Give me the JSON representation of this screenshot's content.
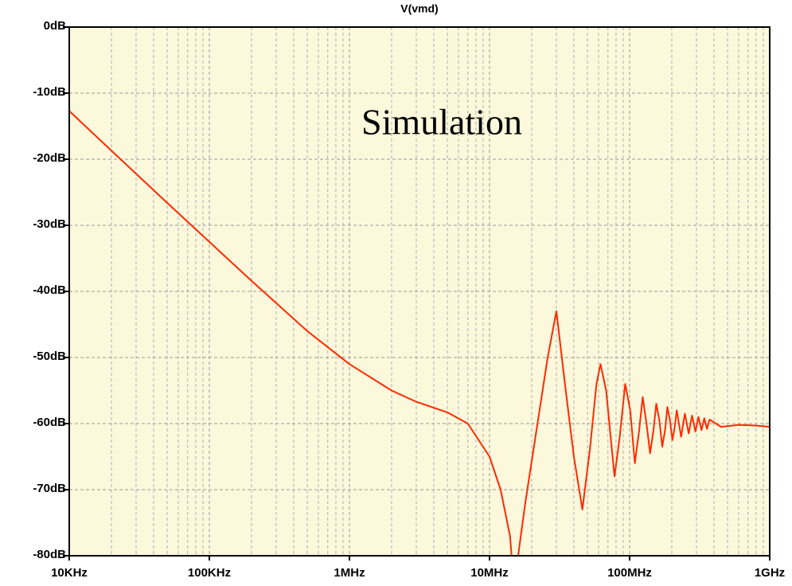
{
  "chart_data": {
    "type": "line",
    "series": [
      {
        "name": "V(vmd)",
        "color": "#ff2a00",
        "values": [
          -12.7,
          -18.7,
          -26.6,
          -32.5,
          -38.4,
          -46,
          -51,
          -55,
          -56.7,
          -58.3,
          -60,
          -65,
          -70,
          -77,
          -85,
          -80,
          -72,
          -60,
          -50,
          -43,
          -55,
          -65,
          -73,
          -64,
          -54,
          -51,
          -55,
          -68,
          -62,
          -54,
          -58,
          -66,
          -61,
          -56,
          -60,
          -64.5,
          -61,
          -57,
          -59.5,
          -63.5,
          -61,
          -57.5,
          -59.5,
          -62.5,
          -60.5,
          -58,
          -62,
          -58.5,
          -61.5,
          -58.8,
          -61.2,
          -59,
          -61,
          -59.2,
          -60.8,
          -59.4,
          -60.5,
          -60.2,
          -60.3,
          -60.5
        ]
      }
    ],
    "x": [
      10000.0,
      20000.0,
      50000.0,
      100000.0,
      200000.0,
      500000.0,
      1000000.0,
      2000000.0,
      3000000.0,
      5000000.0,
      7000000.0,
      10000000.0,
      12000000.0,
      14000000.0,
      15000000.0,
      16000000.0,
      18000000.0,
      22000000.0,
      26000000.0,
      30000000.0,
      35000000.0,
      40000000.0,
      46000000.0,
      52000000.0,
      58000000.0,
      62000000.0,
      68000000.0,
      78000000.0,
      85000000.0,
      93000000.0,
      101000000.0,
      109000000.0,
      117000000.0,
      124000000.0,
      132000000.0,
      140000000.0,
      148000000.0,
      155000000.0,
      163000000.0,
      171000000.0,
      179000000.0,
      186000000.0,
      194000000.0,
      202000000.0,
      210000000.0,
      217000000.0,
      233000000.0,
      248000000.0,
      264000000.0,
      279000000.0,
      295000000.0,
      310000000.0,
      326000000.0,
      341000000.0,
      357000000.0,
      372000000.0,
      450000000.0,
      600000000.0,
      800000000.0,
      1000000000.0
    ],
    "xlim": [
      10000.0,
      1000000000.0
    ],
    "xticks": [
      {
        "value": 10000.0,
        "label": "10KHz"
      },
      {
        "value": 100000.0,
        "label": "100KHz"
      },
      {
        "value": 1000000.0,
        "label": "1MHz"
      },
      {
        "value": 10000000.0,
        "label": "10MHz"
      },
      {
        "value": 100000000.0,
        "label": "100MHz"
      },
      {
        "value": 1000000000.0,
        "label": "1GHz"
      }
    ],
    "xscale": "log",
    "ylim": [
      -80,
      0
    ],
    "yticks": [
      {
        "value": 0,
        "label": "0dB"
      },
      {
        "value": -10,
        "label": "-10dB"
      },
      {
        "value": -20,
        "label": "-20dB"
      },
      {
        "value": -30,
        "label": "-30dB"
      },
      {
        "value": -40,
        "label": "-40dB"
      },
      {
        "value": -50,
        "label": "-50dB"
      },
      {
        "value": -60,
        "label": "-60dB"
      },
      {
        "value": -70,
        "label": "-70dB"
      },
      {
        "value": -80,
        "label": "-80dB"
      }
    ],
    "grid": true,
    "minor_grid": true,
    "annotations": [
      {
        "text": "Simulation",
        "color": "#1010e0"
      }
    ]
  }
}
